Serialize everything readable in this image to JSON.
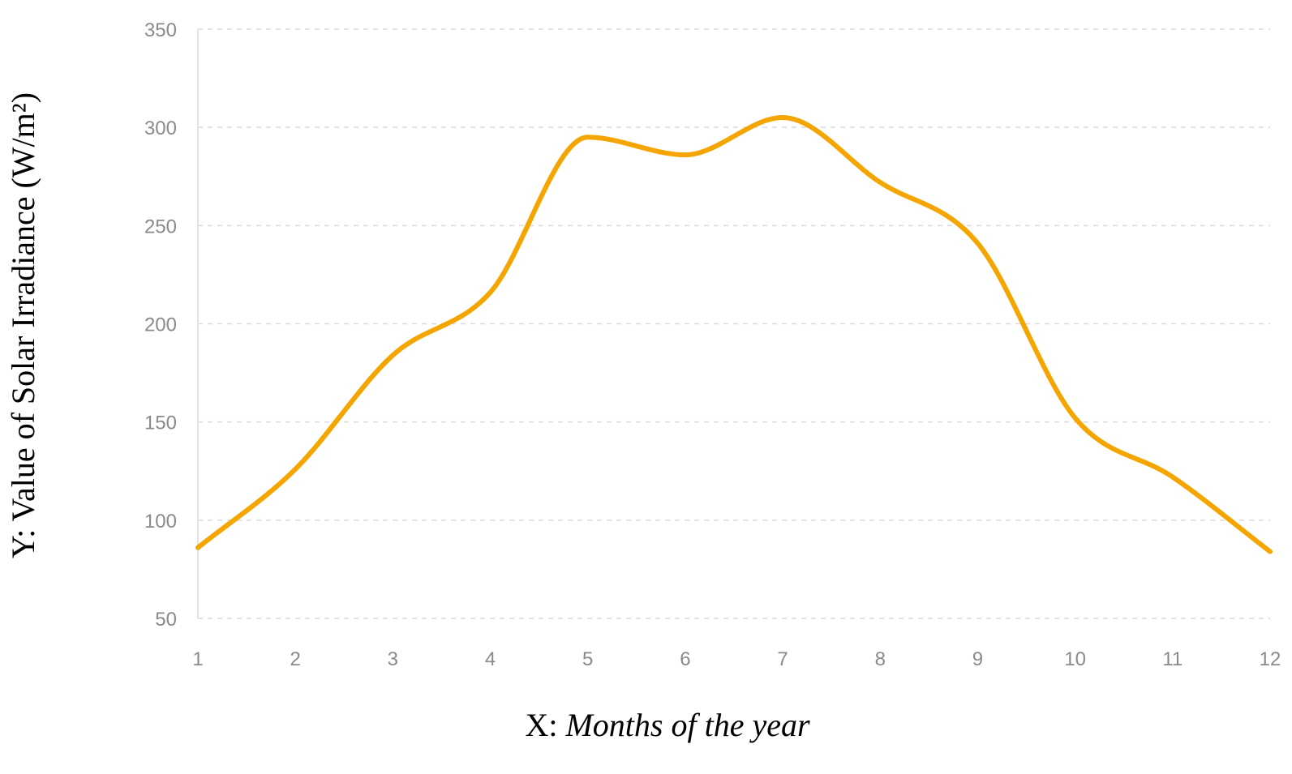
{
  "chart_data": {
    "type": "line",
    "title": "",
    "xlabel_prefix": "X: ",
    "xlabel_text": "Months of the year",
    "ylabel": "Y: Value of Solar Irradiance (W/m²)",
    "x": [
      1,
      2,
      3,
      4,
      5,
      6,
      7,
      8,
      9,
      10,
      11,
      12
    ],
    "series": [
      {
        "values": [
          86,
          126,
          184,
          216,
          295,
          286,
          305,
          272,
          241,
          152,
          122,
          84
        ]
      }
    ],
    "xlim": [
      1,
      12
    ],
    "ylim": [
      50,
      350
    ],
    "yticks": [
      50,
      100,
      150,
      200,
      250,
      300,
      350
    ],
    "grid": true,
    "line_color": "#f5a500"
  }
}
